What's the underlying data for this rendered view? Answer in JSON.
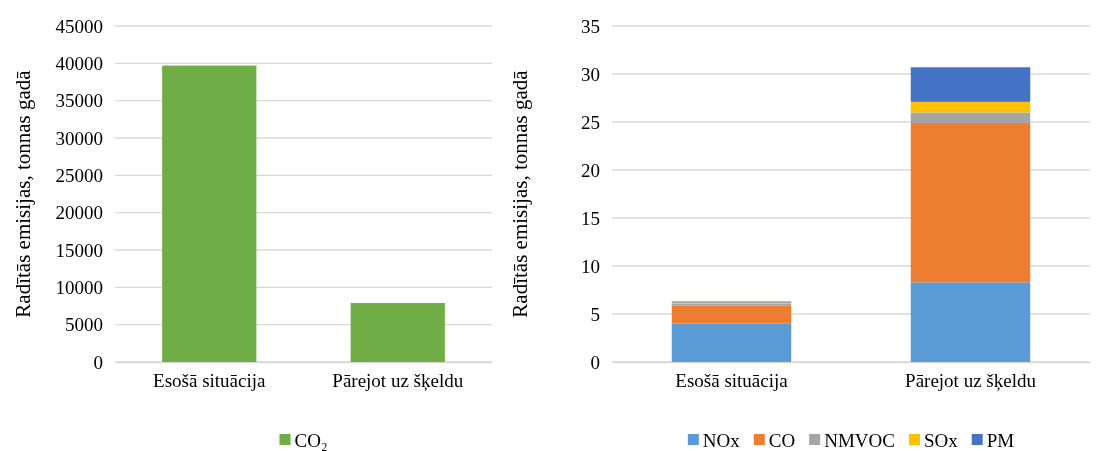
{
  "chart_data": [
    {
      "type": "bar",
      "ylabel": "Radītās emisijas, tonnas gadā",
      "categories": [
        "Esošā situācija",
        "Pārejot uz šķeldu"
      ],
      "ylim": [
        0,
        45000
      ],
      "yticks": [
        0,
        5000,
        10000,
        15000,
        20000,
        25000,
        30000,
        35000,
        40000,
        45000
      ],
      "grid": "y",
      "legend": "bottom",
      "series": [
        {
          "name": "CO₂",
          "color": "#70ad47",
          "values": [
            39700,
            7900
          ]
        }
      ]
    },
    {
      "type": "bar",
      "stacked": true,
      "ylabel": "Radītās emisijas, tonnas gadā",
      "categories": [
        "Esošā situācija",
        "Pārejot uz šķeldu"
      ],
      "ylim": [
        0,
        35
      ],
      "yticks": [
        0,
        5,
        10,
        15,
        20,
        25,
        30,
        35
      ],
      "grid": "y",
      "legend": "bottom",
      "series": [
        {
          "name": "NOx",
          "color": "#5b9bd5",
          "values": [
            4.0,
            8.3
          ]
        },
        {
          "name": "CO",
          "color": "#ed7d31",
          "values": [
            1.9,
            16.6
          ]
        },
        {
          "name": "NMVOC",
          "color": "#a5a5a5",
          "values": [
            0.2,
            1.1
          ]
        },
        {
          "name": "SOx",
          "color": "#ffc000",
          "values": [
            0.1,
            1.1
          ]
        },
        {
          "name": "PM",
          "color": "#4472c4",
          "values": [
            0.1,
            3.6
          ]
        }
      ]
    }
  ]
}
